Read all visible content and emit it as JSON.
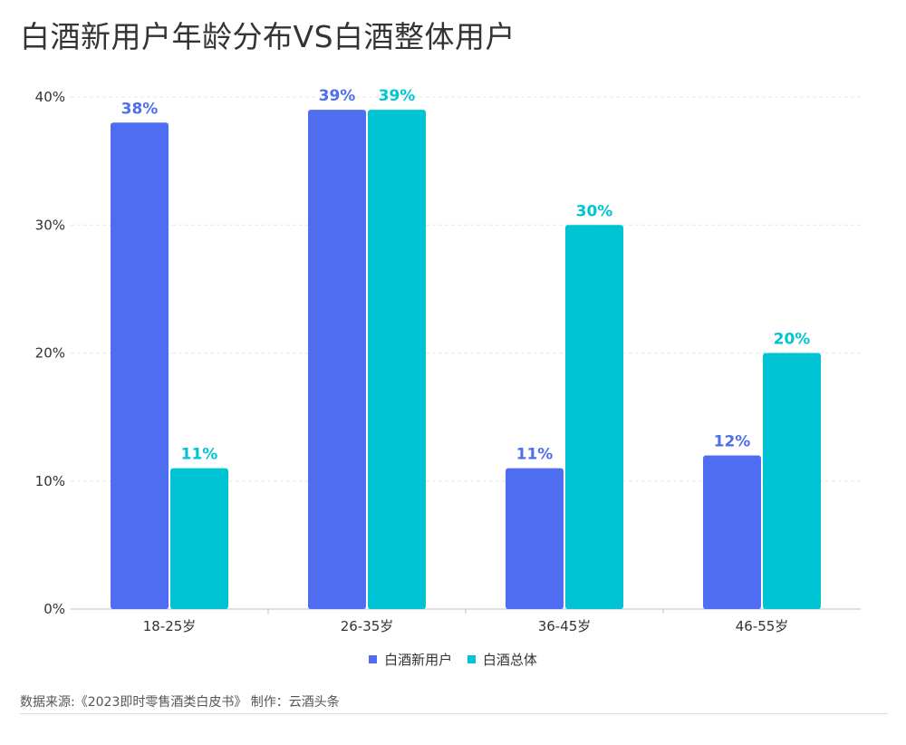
{
  "title": "白酒新用户年龄分布VS白酒整体用户",
  "source_text": "数据来源:《2023即时零售酒类白皮书》 制作：云酒头条",
  "chart_data": {
    "type": "bar",
    "categories": [
      "18-25岁",
      "26-35岁",
      "36-45岁",
      "46-55岁"
    ],
    "series": [
      {
        "name": "白酒新用户",
        "values": [
          38,
          39,
          11,
          12
        ],
        "color": "#4f6df0"
      },
      {
        "name": "白酒总体",
        "values": [
          11,
          39,
          30,
          20
        ],
        "color": "#00c4d4"
      }
    ],
    "yticks": [
      "0%",
      "10%",
      "20%",
      "30%",
      "40%"
    ],
    "ylim": [
      0,
      40
    ],
    "grid": true,
    "legend": "bottom"
  }
}
